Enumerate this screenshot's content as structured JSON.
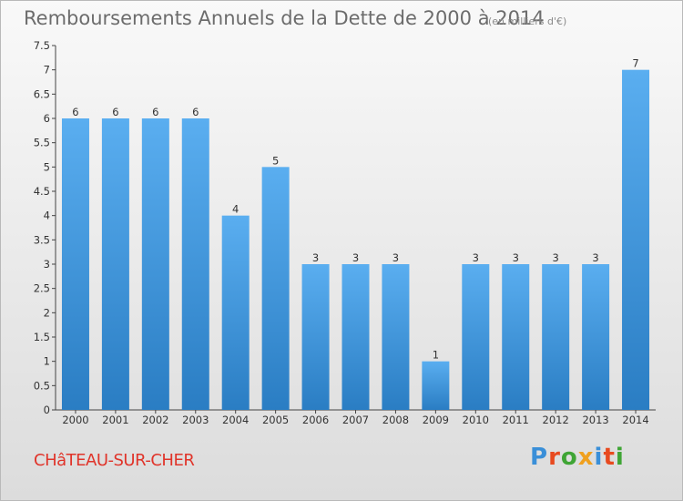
{
  "header": {
    "title": "Remboursements Annuels de la Dette de 2000 à 2014",
    "unit": "(en milliers d'€)"
  },
  "footer": {
    "commune": "CHâTEAU-SUR-CHER",
    "logo": "Proxiti"
  },
  "colors": {
    "bar_top": "#5aaef0",
    "bar_bottom": "#2a7dc3",
    "title": "#6c6c6c",
    "commune": "#e0342a",
    "logo": [
      "#3a8fd8",
      "#e84a1f",
      "#3fa535",
      "#f0a01e",
      "#3a8fd8",
      "#e84a1f",
      "#3fa535"
    ]
  },
  "chart_data": {
    "type": "bar",
    "title": "Remboursements Annuels de la Dette de 2000 à 2014",
    "xlabel": "",
    "ylabel": "(en milliers d'€)",
    "categories": [
      "2000",
      "2001",
      "2002",
      "2003",
      "2004",
      "2005",
      "2006",
      "2007",
      "2008",
      "2009",
      "2010",
      "2011",
      "2012",
      "2013",
      "2014"
    ],
    "values": [
      6,
      6,
      6,
      6,
      4,
      5,
      3,
      3,
      3,
      1,
      3,
      3,
      3,
      3,
      7
    ],
    "ylim": [
      0,
      7.5
    ],
    "yticks": [
      "0",
      "0.5",
      "1",
      "1.5",
      "2",
      "2.5",
      "3",
      "3.5",
      "4",
      "4.5",
      "5",
      "5.5",
      "6",
      "6.5",
      "7",
      "7.5"
    ],
    "grid": false,
    "legend": "none"
  }
}
